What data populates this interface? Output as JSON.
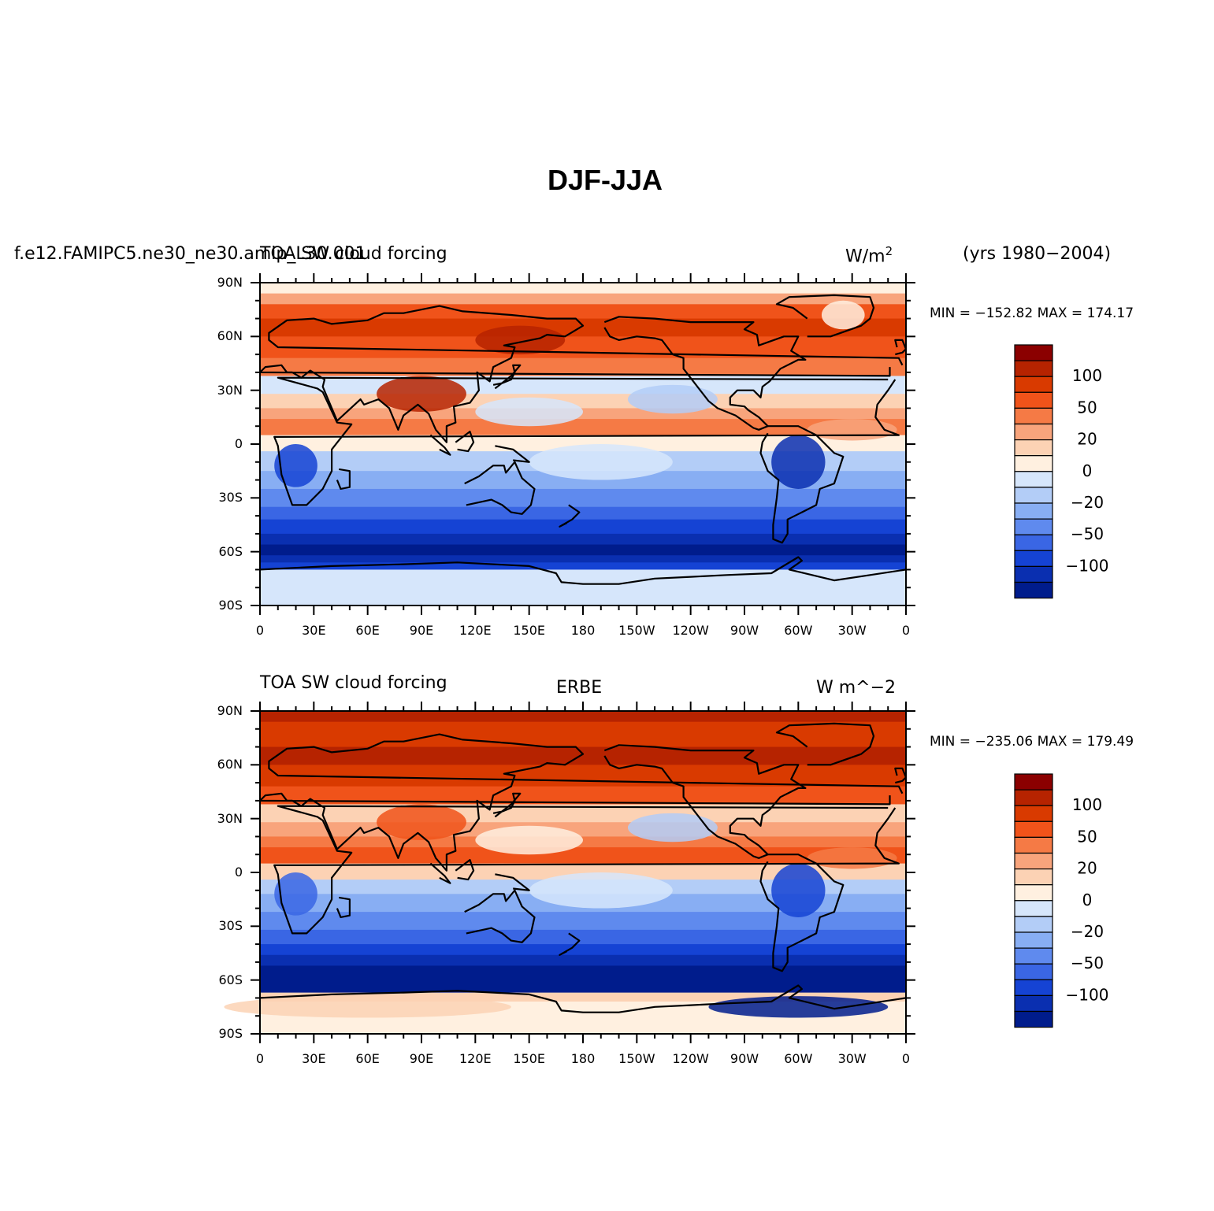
{
  "figure": {
    "title": "DJF-JJA"
  },
  "panels": [
    {
      "case_name": "f.e12.FAMIPC5.ne30_ne30.amip_L30.001",
      "variable": "TOA SW cloud forcing",
      "source": "",
      "units_base": "W/m",
      "units_sup": "2",
      "years": "(yrs 1980−2004)",
      "minmax": "MIN = −152.82  MAX = 174.17"
    },
    {
      "case_name": "",
      "variable": "TOA SW cloud forcing",
      "source": "ERBE",
      "units_base": "W m^−2",
      "units_sup": "",
      "years": "",
      "minmax": "MIN = −235.06  MAX = 179.49"
    }
  ],
  "axes": {
    "lat_labels": [
      "90N",
      "60N",
      "30N",
      "0",
      "30S",
      "60S",
      "90S"
    ],
    "lon_labels": [
      "0",
      "30E",
      "60E",
      "90E",
      "120E",
      "150E",
      "180",
      "150W",
      "120W",
      "90W",
      "60W",
      "30W",
      "0"
    ]
  },
  "colorbar": {
    "labels": [
      "100",
      "50",
      "20",
      "0",
      "−20",
      "−50",
      "−100"
    ],
    "colors": [
      "#8b0000",
      "#b62300",
      "#d93a00",
      "#f0531a",
      "#f57a45",
      "#f8a47c",
      "#fcd2b4",
      "#fff0e0",
      "#d6e6fb",
      "#b3cdf7",
      "#88aef3",
      "#5f8aee",
      "#3a66e4",
      "#1543d4",
      "#0a2fb0",
      "#001c8c"
    ]
  },
  "map_data": {
    "type": "filled-contour map",
    "projection": "cylindrical equidistant",
    "lat_range": [
      -90,
      90
    ],
    "lon_range": [
      0,
      360
    ]
  }
}
